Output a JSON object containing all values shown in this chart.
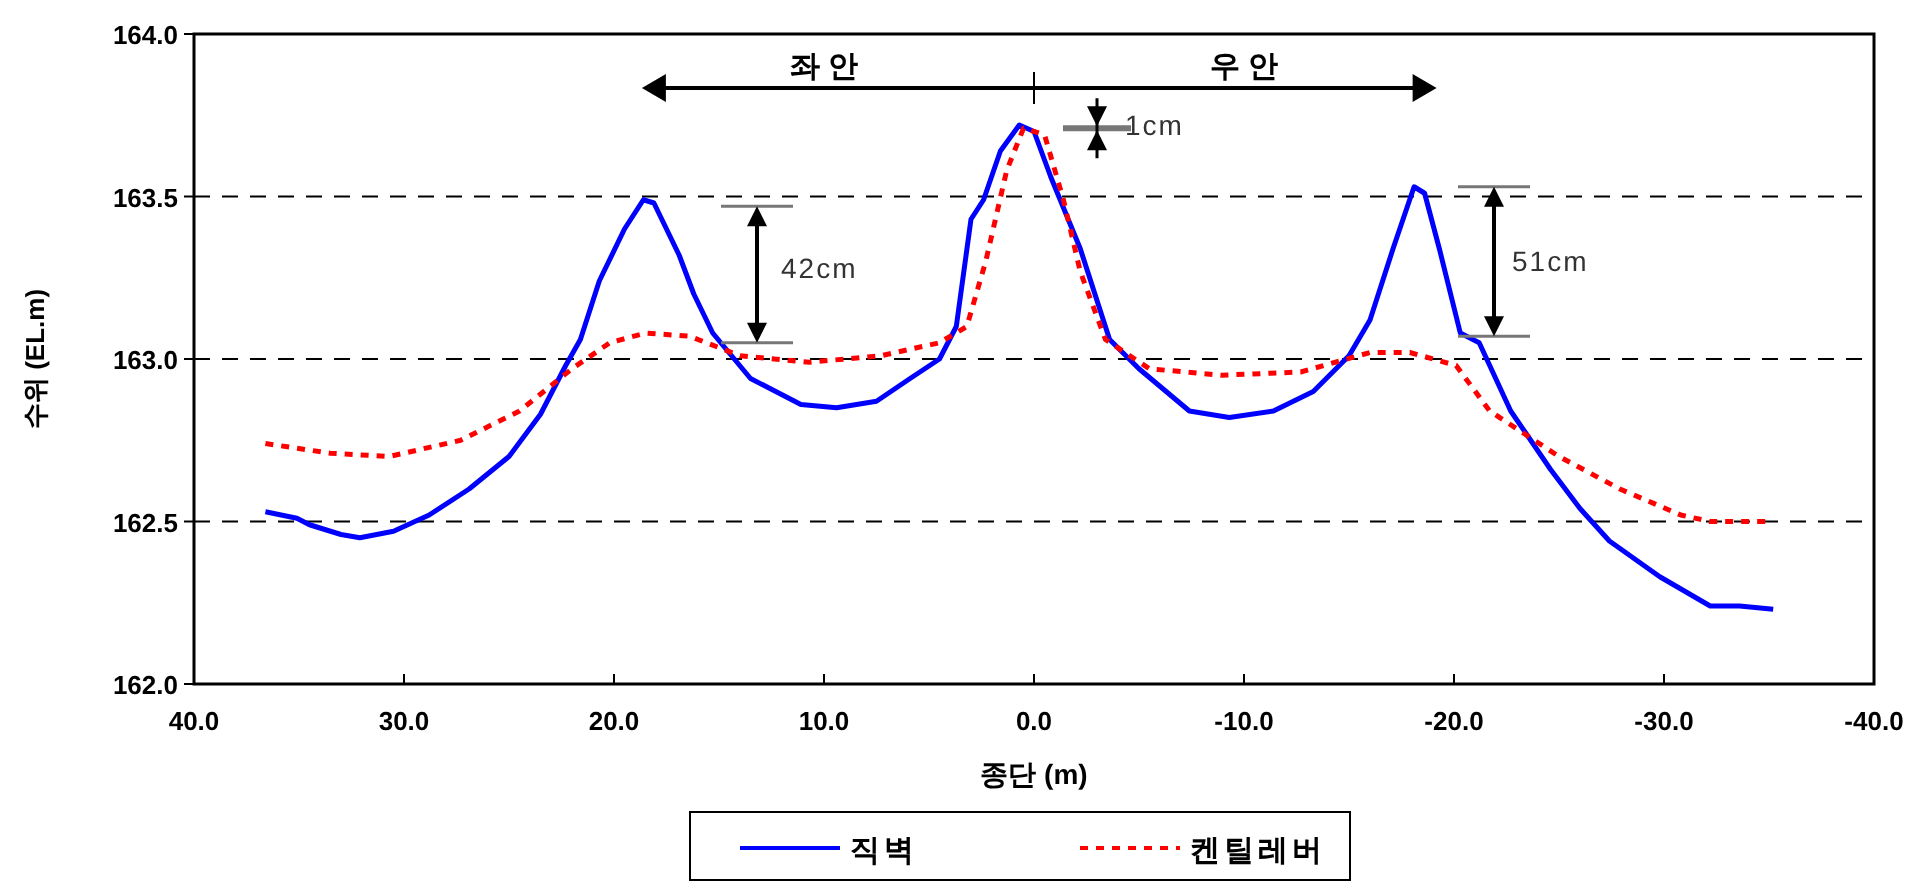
{
  "chart_data": {
    "type": "line",
    "xlabel": "종단 (m)",
    "ylabel": "수위 (EL.m)",
    "xlim": [
      40,
      -40
    ],
    "ylim": [
      162,
      164
    ],
    "xticks": [
      {
        "value": 40,
        "label": "40.0"
      },
      {
        "value": 30,
        "label": "30.0"
      },
      {
        "value": 20,
        "label": "20.0"
      },
      {
        "value": 10,
        "label": "10.0"
      },
      {
        "value": 0,
        "label": "0.0"
      },
      {
        "value": -10,
        "label": "-10.0"
      },
      {
        "value": -20,
        "label": "-20.0"
      },
      {
        "value": -30,
        "label": "-30.0"
      },
      {
        "value": -40,
        "label": "-40.0"
      }
    ],
    "yticks": [
      {
        "value": 162,
        "label": "162.0"
      },
      {
        "value": 162.5,
        "label": "162.5"
      },
      {
        "value": 163,
        "label": "163.0"
      },
      {
        "value": 163.5,
        "label": "163.5"
      },
      {
        "value": 164,
        "label": "164.0"
      }
    ],
    "grid": "y",
    "legend": "bottom",
    "series": [
      {
        "name": "직벽",
        "color": "#0000ff",
        "line_style": "solid",
        "x": [
          36.6,
          35.1,
          34.5,
          33.0,
          32.1,
          30.5,
          28.8,
          26.9,
          25.0,
          23.5,
          22.3,
          21.6,
          20.7,
          19.5,
          18.6,
          18.1,
          16.9,
          16.2,
          15.3,
          13.5,
          11.1,
          9.4,
          7.5,
          5.9,
          4.5,
          3.7,
          3.0,
          2.4,
          1.6,
          0.7,
          0.0,
          -0.8,
          -2.2,
          -3.6,
          -5.0,
          -7.4,
          -9.3,
          -11.4,
          -13.3,
          -15.0,
          -16.0,
          -17.1,
          -18.1,
          -18.6,
          -19.3,
          -20.3,
          -21.2,
          -22.7,
          -24.6,
          -26.0,
          -27.4,
          -29.8,
          -32.2,
          -33.6,
          -35.2
        ],
        "values": [
          162.53,
          162.51,
          162.49,
          162.46,
          162.45,
          162.47,
          162.52,
          162.6,
          162.7,
          162.83,
          162.98,
          163.06,
          163.24,
          163.4,
          163.49,
          163.48,
          163.32,
          163.2,
          163.08,
          162.94,
          162.86,
          162.85,
          162.87,
          162.94,
          163.0,
          163.1,
          163.43,
          163.49,
          163.64,
          163.72,
          163.7,
          163.56,
          163.34,
          163.06,
          162.97,
          162.84,
          162.82,
          162.84,
          162.9,
          163.01,
          163.12,
          163.34,
          163.53,
          163.51,
          163.34,
          163.08,
          163.05,
          162.84,
          162.66,
          162.54,
          162.44,
          162.33,
          162.24,
          162.24,
          162.23
        ]
      },
      {
        "name": "켄틸레버",
        "color": "#ff0000",
        "line_style": "dotted",
        "x": [
          36.6,
          33.5,
          30.7,
          27.3,
          24.5,
          22.0,
          20.2,
          18.5,
          16.4,
          14.0,
          10.7,
          7.3,
          4.5,
          3.2,
          2.3,
          1.3,
          0.5,
          -0.5,
          -1.4,
          -2.2,
          -3.4,
          -5.5,
          -8.9,
          -12.7,
          -16.0,
          -17.9,
          -20.1,
          -21.7,
          -25.0,
          -27.9,
          -30.8,
          -32.2,
          -34.9
        ],
        "values": [
          162.74,
          162.71,
          162.7,
          162.75,
          162.84,
          162.97,
          163.05,
          163.08,
          163.07,
          163.01,
          162.99,
          163.01,
          163.05,
          163.1,
          163.3,
          163.58,
          163.71,
          163.69,
          163.49,
          163.27,
          163.06,
          162.97,
          162.95,
          162.96,
          163.02,
          163.02,
          162.98,
          162.84,
          162.7,
          162.6,
          162.52,
          162.5,
          162.5
        ]
      }
    ],
    "annotations": [
      "좌 안",
      "우 안",
      "42cm",
      "51cm",
      "1cm"
    ]
  }
}
